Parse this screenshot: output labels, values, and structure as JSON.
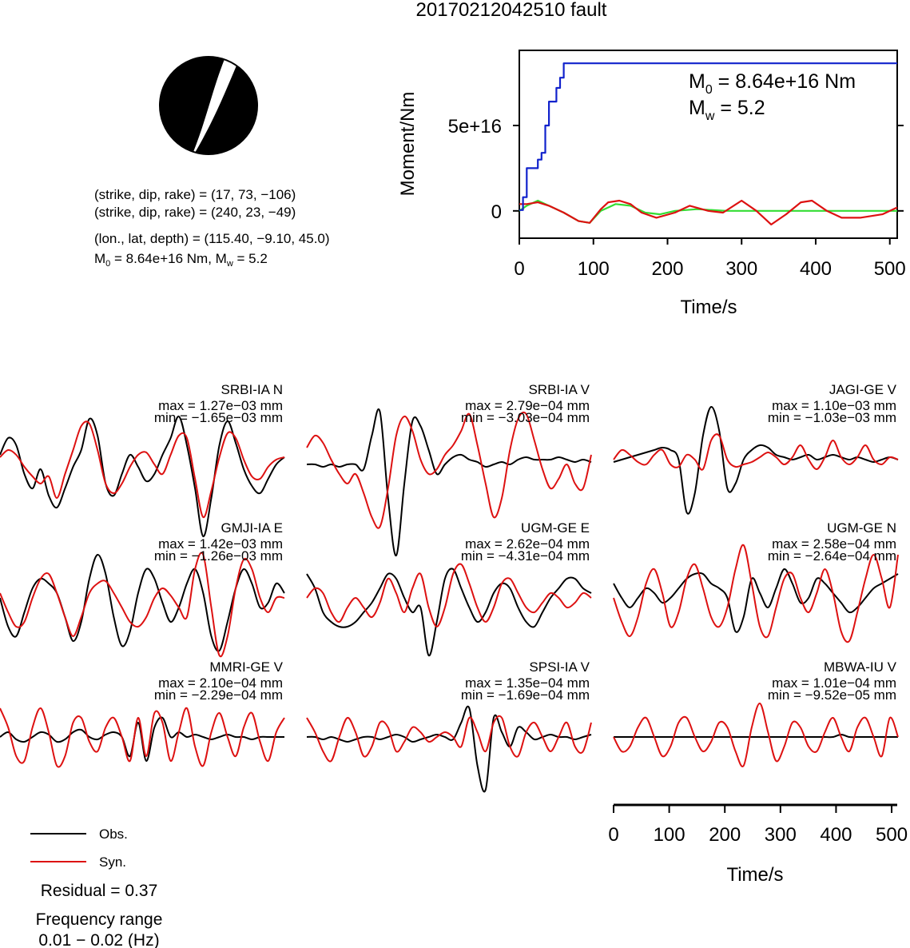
{
  "title": "20170212042510 fault",
  "beachball": {
    "line1": "(strike, dip, rake) = (17, 73, −106)",
    "line2": "(strike, dip, rake) = (240, 23, −49)",
    "line3": "(lon., lat, depth) = (115.40, −9.10, 45.0)",
    "line4_m0_label": "M",
    "line4_m0_sub": "0",
    "line4_rest": " = 8.64e+16 Nm, M",
    "line4_mw_sub": "w",
    "line4_end": " = 5.2"
  },
  "colors": {
    "obs": "#000000",
    "syn": "#dd1111",
    "moment": "#1122cc",
    "green": "#33dd33"
  },
  "chart_data": [
    {
      "type": "line",
      "id": "moment-rate",
      "xlabel": "Time/s",
      "ylabel": "Moment/Nm",
      "xlim": [
        0,
        510
      ],
      "ylim": [
        -1.6e+16,
        9.4e+16
      ],
      "xticks": [
        0,
        100,
        200,
        300,
        400,
        500
      ],
      "yticks": [
        {
          "v": 0,
          "label": "0"
        },
        {
          "v": 5e+16,
          "label": "5e+16"
        }
      ],
      "annotation": {
        "m0_base": "M",
        "m0_sub": "0",
        "m0_text": " = 8.64e+16 Nm",
        "mw_base": "M",
        "mw_sub": "w",
        "mw_text": " = 5.2"
      },
      "series": [
        {
          "key": "moment",
          "colorKey": "moment",
          "x": [
            0,
            5,
            10,
            20,
            25,
            30,
            35,
            40,
            48,
            50,
            55,
            60,
            510
          ],
          "y": [
            500000000000000.0,
            8000000000000000.0,
            2.5e+16,
            2.5e+16,
            3e+16,
            3.4e+16,
            5e+16,
            6.4e+16,
            6.4e+16,
            7.2e+16,
            7.8e+16,
            8.64e+16,
            8.64e+16
          ]
        },
        {
          "key": "green",
          "colorKey": "green",
          "x": [
            0,
            10,
            25,
            40,
            60,
            80,
            95,
            110,
            130,
            150,
            170,
            190,
            210,
            240,
            280,
            320,
            360,
            400,
            450,
            510
          ],
          "y": [
            0.0,
            3000000000000000.0,
            6000000000000000.0,
            3000000000000000.0,
            -1000000000000000.0,
            -6000000000000000.0,
            -7000000000000000.0,
            0.0,
            4000000000000000.0,
            3000000000000000.0,
            -1000000000000000.0,
            -2000000000000000.0,
            0.0,
            1000000000000000.0,
            0.0,
            0.0,
            0.0,
            0.0,
            0.0,
            0.0
          ]
        },
        {
          "key": "syn",
          "colorKey": "syn",
          "x": [
            0,
            10,
            25,
            40,
            60,
            80,
            95,
            110,
            120,
            135,
            150,
            165,
            185,
            210,
            230,
            255,
            275,
            300,
            320,
            340,
            360,
            380,
            395,
            415,
            435,
            460,
            490,
            510
          ],
          "y": [
            4000000000000000.0,
            4000000000000000.0,
            5000000000000000.0,
            3000000000000000.0,
            -1000000000000000.0,
            -6000000000000000.0,
            -7000000000000000.0,
            1000000000000000.0,
            5000000000000000.0,
            6000000000000000.0,
            4000000000000000.0,
            -1000000000000000.0,
            -4000000000000000.0,
            -1000000000000000.0,
            3000000000000000.0,
            0.0,
            -1000000000000000.0,
            6000000000000000.0,
            0.0,
            -8000000000000000.0,
            -2000000000000000.0,
            5000000000000000.0,
            6000000000000000.0,
            0.0,
            -4000000000000000.0,
            -4000000000000000.0,
            -2000000000000000.0,
            2000000000000000.0
          ]
        }
      ]
    },
    {
      "type": "line",
      "id": "waveforms",
      "panels": [
        {
          "station": "SRBI-IA N",
          "max": "max = 1.27e−03 mm",
          "min": "min = −1.65e−03 mm",
          "obs": [
            0.1,
            0.45,
            0.3,
            -0.3,
            -0.6,
            -0.2,
            -0.75,
            -1.0,
            -0.6,
            -0.15,
            0.2,
            0.85,
            0.5,
            -0.5,
            -0.75,
            -0.3,
            0.1,
            -0.15,
            -0.45,
            -0.3,
            0.1,
            0.45,
            0.9,
            0.3,
            -0.6,
            -1.6,
            -0.8,
            0.3,
            0.8,
            0.35,
            -0.2,
            -0.55,
            -0.7,
            -0.4,
            -0.1,
            0.05
          ],
          "syn": [
            0.05,
            0.2,
            0.1,
            -0.15,
            -0.35,
            -0.5,
            -0.35,
            -0.8,
            -0.3,
            0.2,
            0.7,
            0.75,
            0.2,
            -0.5,
            -0.7,
            -0.5,
            -0.15,
            0.1,
            0.15,
            -0.1,
            -0.3,
            0.1,
            0.5,
            0.45,
            -0.4,
            -1.2,
            -0.65,
            0.05,
            0.55,
            0.45,
            0.0,
            -0.35,
            -0.4,
            -0.15,
            0.0,
            0.05
          ]
        },
        {
          "station": "SRBI-IA V",
          "max": "max = 2.79e−04 mm",
          "min": "min = −3.03e−04 mm",
          "obs": [
            -0.1,
            -0.1,
            -0.15,
            -0.1,
            -0.15,
            -0.1,
            -0.1,
            -0.2,
            0.5,
            1.0,
            -0.8,
            -2.0,
            -0.5,
            0.8,
            0.7,
            0.2,
            -0.3,
            -0.1,
            0.05,
            0.1,
            0.0,
            -0.05,
            -0.15,
            -0.1,
            -0.05,
            -0.1,
            0.0,
            0.05,
            0.0,
            0.0,
            0.0,
            0.05,
            0.0,
            -0.05,
            0.0,
            -0.05
          ],
          "syn": [
            0.25,
            0.5,
            0.35,
            0.0,
            -0.3,
            -0.5,
            -0.3,
            -0.7,
            -1.2,
            -1.4,
            -0.6,
            0.5,
            0.9,
            0.6,
            0.0,
            -0.3,
            -0.2,
            0.1,
            0.3,
            0.6,
            0.95,
            0.3,
            -0.5,
            -1.2,
            -0.8,
            0.2,
            0.85,
            0.95,
            0.4,
            -0.2,
            -0.6,
            -0.4,
            -0.1,
            -0.5,
            -0.6,
            0.1
          ]
        },
        {
          "station": "JAGI-GE V",
          "max": "max = 1.10e−03 mm",
          "min": "min = −1.03e−03 mm",
          "obs": [
            -0.05,
            0.0,
            0.05,
            0.1,
            0.15,
            0.2,
            0.25,
            0.2,
            0.0,
            -1.1,
            -0.7,
            0.5,
            1.1,
            0.6,
            -0.6,
            -0.5,
            0.0,
            0.2,
            0.3,
            0.25,
            0.1,
            0.05,
            0.0,
            0.05,
            0.1,
            0.0,
            0.05,
            0.1,
            0.05,
            0.0,
            0.05,
            0.0,
            -0.05,
            0.0,
            0.05,
            0.0
          ],
          "syn": [
            0.0,
            0.2,
            0.1,
            -0.05,
            -0.1,
            0.1,
            0.2,
            -0.1,
            -0.15,
            0.1,
            0.0,
            -0.2,
            0.4,
            0.5,
            0.0,
            -0.15,
            -0.1,
            -0.05,
            0.05,
            0.15,
            0.05,
            -0.1,
            0.05,
            0.3,
            0.0,
            -0.2,
            0.05,
            0.4,
            0.05,
            -0.1,
            0.05,
            0.3,
            0.0,
            -0.1,
            0.05,
            0.0
          ]
        },
        {
          "station": "GMJI-IA E",
          "max": "max = 1.42e−03 mm",
          "min": "min = −1.26e−03 mm",
          "obs": [
            0.0,
            -0.6,
            -0.8,
            -0.3,
            0.2,
            0.4,
            0.3,
            0.1,
            -0.4,
            -0.9,
            -0.5,
            0.4,
            0.9,
            0.5,
            -0.4,
            -1.0,
            -0.7,
            0.1,
            0.6,
            0.4,
            -0.1,
            -0.5,
            -0.2,
            0.3,
            0.6,
            0.1,
            -0.8,
            -1.1,
            -0.5,
            0.2,
            0.6,
            0.3,
            -0.2,
            -0.1,
            0.3,
            0.1
          ],
          "syn": [
            0.1,
            -0.3,
            -0.6,
            -0.5,
            0.0,
            0.4,
            0.5,
            0.1,
            -0.4,
            -0.8,
            -0.4,
            0.1,
            0.3,
            0.35,
            0.1,
            -0.2,
            -0.5,
            -0.6,
            -0.4,
            0.0,
            0.2,
            0.05,
            -0.2,
            -0.4,
            0.6,
            0.9,
            -0.2,
            -1.2,
            -0.8,
            0.2,
            0.8,
            0.6,
            0.0,
            -0.3,
            0.0,
            0.0
          ]
        },
        {
          "station": "UGM-GE E",
          "max": "max = 2.62e−04 mm",
          "min": "min = −4.31e−04 mm",
          "obs": [
            0.5,
            0.2,
            -0.3,
            -0.5,
            -0.6,
            -0.6,
            -0.5,
            -0.3,
            -0.1,
            0.2,
            0.5,
            0.4,
            0.0,
            -0.3,
            -0.2,
            -1.2,
            -0.5,
            0.4,
            0.6,
            0.2,
            -0.2,
            -0.5,
            -0.3,
            0.1,
            0.3,
            0.2,
            -0.2,
            -0.5,
            -0.6,
            -0.3,
            0.0,
            0.2,
            0.4,
            0.4,
            0.2,
            0.1
          ],
          "syn": [
            0.0,
            0.2,
            0.1,
            -0.3,
            -0.5,
            -0.2,
            0.0,
            -0.2,
            -0.4,
            -0.1,
            0.4,
            0.1,
            -0.3,
            0.2,
            0.5,
            -0.2,
            -0.6,
            -0.2,
            0.5,
            0.7,
            0.3,
            -0.2,
            -0.5,
            -0.2,
            0.3,
            0.4,
            0.1,
            -0.2,
            -0.3,
            -0.1,
            0.1,
            0.0,
            -0.2,
            -0.1,
            0.1,
            0.0
          ]
        },
        {
          "station": "UGM-GE N",
          "max": "max = 2.58e−04 mm",
          "min": "min = −2.64e−04 mm",
          "obs": [
            0.3,
            0.0,
            -0.2,
            0.0,
            0.2,
            0.1,
            -0.1,
            0.0,
            0.2,
            0.4,
            0.5,
            0.5,
            0.3,
            0.2,
            0.0,
            -0.7,
            -0.4,
            0.4,
            0.1,
            -0.2,
            0.2,
            0.6,
            0.3,
            -0.1,
            0.0,
            0.4,
            0.3,
            0.1,
            -0.1,
            -0.3,
            -0.2,
            0.0,
            0.2,
            0.3,
            0.4,
            0.5
          ],
          "syn": [
            0.0,
            -0.5,
            -0.8,
            -0.4,
            0.3,
            0.6,
            0.1,
            -0.6,
            -0.3,
            0.4,
            0.7,
            0.2,
            -0.4,
            -0.6,
            -0.2,
            0.6,
            1.1,
            0.3,
            -0.6,
            -0.8,
            -0.2,
            0.4,
            0.5,
            0.0,
            -0.3,
            0.1,
            0.6,
            0.1,
            -0.7,
            -0.9,
            -0.3,
            0.4,
            0.9,
            0.4,
            -0.2,
            0.9
          ]
        },
        {
          "station": "MMRI-GE V",
          "max": "max = 2.10e−04 mm",
          "min": "min = −2.29e−04 mm",
          "obs": [
            0.0,
            0.1,
            -0.05,
            -0.1,
            0.0,
            0.1,
            0.05,
            -0.1,
            -0.05,
            0.1,
            0.15,
            0.0,
            -0.05,
            0.05,
            0.1,
            0.0,
            -0.4,
            0.3,
            -0.5,
            0.2,
            0.4,
            0.0,
            0.1,
            0.0,
            0.05,
            0.0,
            -0.05,
            0.0,
            0.05,
            0.0,
            0.0,
            -0.05,
            0.0,
            0.0,
            0.0,
            0.0
          ],
          "syn": [
            0.6,
            0.2,
            -0.4,
            -0.5,
            0.2,
            0.6,
            0.1,
            -0.6,
            -0.4,
            0.3,
            0.4,
            -0.1,
            -0.3,
            0.2,
            0.4,
            0.0,
            -0.5,
            0.4,
            -0.4,
            0.5,
            0.3,
            -0.5,
            0.1,
            0.6,
            -0.2,
            -0.6,
            0.1,
            0.5,
            0.0,
            -0.4,
            0.2,
            0.5,
            -0.1,
            -0.5,
            0.1,
            0.4
          ]
        },
        {
          "station": "SPSI-IA V",
          "max": "max = 1.35e−04 mm",
          "min": "min = −1.69e−04 mm",
          "obs": [
            0.0,
            0.0,
            -0.05,
            0.0,
            -0.05,
            -0.1,
            -0.05,
            0.0,
            0.0,
            -0.05,
            0.0,
            0.05,
            0.0,
            -0.1,
            -0.05,
            0.0,
            0.05,
            0.0,
            -0.05,
            0.3,
            0.6,
            -0.6,
            -1.1,
            0.4,
            0.1,
            -0.2,
            0.2,
            0.1,
            -0.05,
            0.0,
            0.05,
            0.0,
            0.0,
            -0.05,
            0.0,
            0.05
          ],
          "syn": [
            0.4,
            0.1,
            -0.3,
            -0.5,
            0.0,
            0.4,
            0.1,
            -0.4,
            -0.2,
            0.3,
            0.2,
            -0.3,
            -0.1,
            0.2,
            0.1,
            -0.1,
            0.0,
            0.1,
            0.0,
            -0.2,
            0.4,
            0.1,
            -0.3,
            0.3,
            0.4,
            -0.2,
            -0.4,
            0.1,
            0.3,
            0.0,
            -0.3,
            0.0,
            0.3,
            -0.2,
            -0.3,
            0.3
          ]
        },
        {
          "station": "MBWA-IU V",
          "max": "max = 1.01e−04 mm",
          "min": "min = −9.52e−05 mm",
          "obs": [
            0.0,
            0.0,
            0.0,
            0.0,
            0.0,
            0.0,
            0.0,
            0.0,
            0.0,
            0.0,
            0.0,
            0.0,
            0.0,
            0.0,
            0.0,
            0.0,
            0.0,
            0.0,
            0.0,
            0.0,
            0.0,
            0.0,
            0.0,
            0.0,
            0.0,
            0.0,
            0.0,
            0.0,
            0.05,
            0.0,
            0.0,
            0.0,
            0.0,
            0.0,
            0.0,
            0.0
          ],
          "syn": [
            0.0,
            -0.3,
            -0.2,
            0.2,
            0.4,
            0.0,
            -0.4,
            -0.2,
            0.3,
            0.4,
            0.0,
            -0.3,
            -0.1,
            0.3,
            0.2,
            -0.3,
            -0.6,
            0.2,
            0.7,
            0.1,
            -0.5,
            -0.2,
            0.3,
            0.2,
            -0.2,
            -0.3,
            0.1,
            0.4,
            0.0,
            -0.3,
            0.2,
            0.4,
            0.0,
            -0.4,
            0.4,
            0.0
          ]
        }
      ],
      "bottom_axis": {
        "xlabel": "Time/s",
        "xlim": [
          0,
          510
        ],
        "xticks": [
          0,
          100,
          200,
          300,
          400,
          500
        ]
      }
    }
  ],
  "legend": {
    "obs": "Obs.",
    "syn": "Syn."
  },
  "residual": "Residual = 0.37",
  "freq_label": "Frequency range",
  "freq_value": "0.01 − 0.02 (Hz)"
}
